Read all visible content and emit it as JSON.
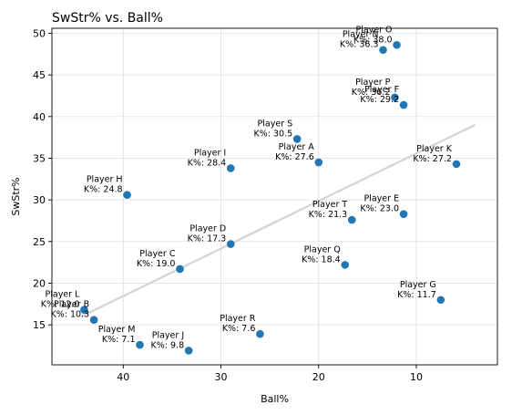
{
  "chart_data": {
    "type": "scatter",
    "title": "SwStr% vs. Ball%",
    "xlabel": "Ball%",
    "ylabel": "SwStr%",
    "xlim": [
      47.3,
      1.7
    ],
    "ylim": [
      10.2,
      50.6
    ],
    "x_axis_inverted": true,
    "xticks": [
      40,
      30,
      20,
      10
    ],
    "yticks": [
      15,
      20,
      25,
      30,
      35,
      40,
      45,
      50
    ],
    "grid": true,
    "legend": "none",
    "point_color": "#1f77b4",
    "trendline_color": "#d3d3d3",
    "trendline": {
      "x": [
        44.3,
        4.0
      ],
      "y": [
        16.0,
        39.0
      ]
    },
    "points": [
      {
        "name": "Player A",
        "label": "K%: 27.6",
        "x": 20.0,
        "y": 34.5
      },
      {
        "name": "Player B",
        "label": "K%: 10.3",
        "x": 43.0,
        "y": 15.6
      },
      {
        "name": "Player C",
        "label": "K%: 19.0",
        "x": 34.2,
        "y": 21.7
      },
      {
        "name": "Player D",
        "label": "K%: 17.3",
        "x": 29.0,
        "y": 24.7
      },
      {
        "name": "Player E",
        "label": "K%: 23.0",
        "x": 11.3,
        "y": 28.3
      },
      {
        "name": "Player F",
        "label": "K%: 29.2",
        "x": 11.3,
        "y": 41.4
      },
      {
        "name": "Player G",
        "label": "K%: 11.7",
        "x": 7.5,
        "y": 18.0
      },
      {
        "name": "Player H",
        "label": "K%: 24.8",
        "x": 39.6,
        "y": 30.6
      },
      {
        "name": "Player I",
        "label": "K%: 28.4",
        "x": 29.0,
        "y": 33.8
      },
      {
        "name": "Player J",
        "label": "K%: 9.8",
        "x": 33.3,
        "y": 11.9
      },
      {
        "name": "Player K",
        "label": "K%: 27.2",
        "x": 5.9,
        "y": 34.3
      },
      {
        "name": "Player L",
        "label": "K%: 12.0",
        "x": 44.0,
        "y": 16.8
      },
      {
        "name": "Player M",
        "label": "K%: 7.1",
        "x": 38.3,
        "y": 12.6
      },
      {
        "name": "Player N",
        "label": "K%: 36.3",
        "x": 13.4,
        "y": 48.0
      },
      {
        "name": "Player O",
        "label": "K%: 38.0",
        "x": 12.0,
        "y": 48.6
      },
      {
        "name": "Player P",
        "label": "K%: 36.2",
        "x": 12.2,
        "y": 42.3
      },
      {
        "name": "Player Q",
        "label": "K%: 18.4",
        "x": 17.3,
        "y": 22.2
      },
      {
        "name": "Player R",
        "label": "K%: 7.6",
        "x": 26.0,
        "y": 13.9
      },
      {
        "name": "Player S",
        "label": "K%: 30.5",
        "x": 22.2,
        "y": 37.3
      },
      {
        "name": "Player T",
        "label": "K%: 21.3",
        "x": 16.6,
        "y": 27.6
      }
    ]
  }
}
